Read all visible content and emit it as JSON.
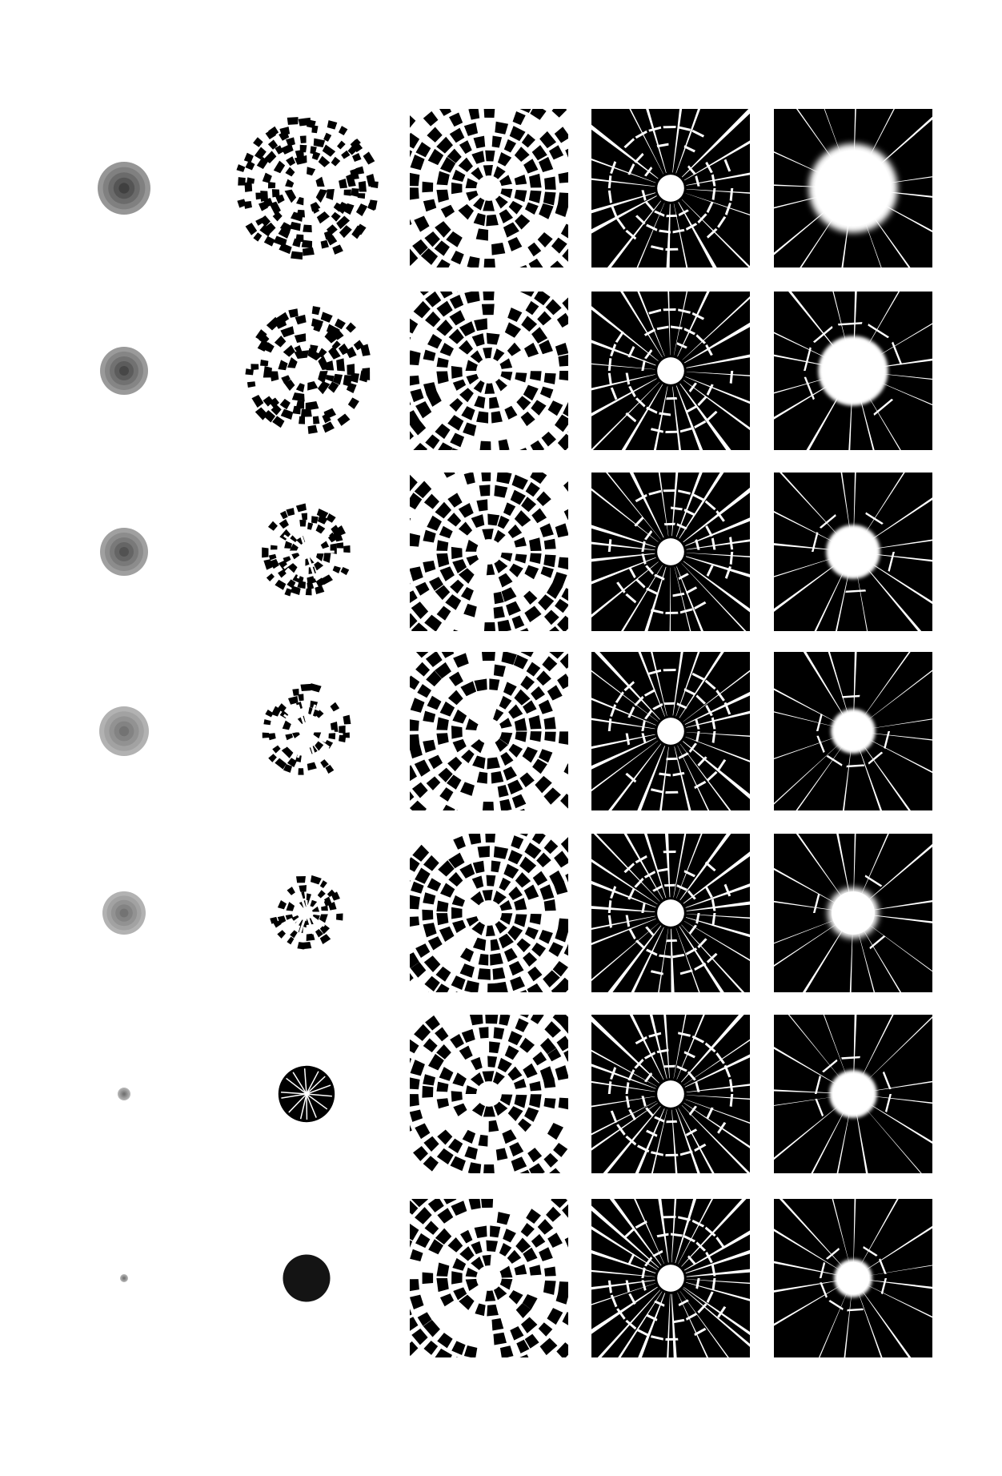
{
  "sheet": {
    "background": "#ffffff",
    "ink": "#000000",
    "columns": [
      {
        "name": "graded-disc"
      },
      {
        "name": "shard-cluster"
      },
      {
        "name": "shattered-ring"
      },
      {
        "name": "broken-glass-tile"
      },
      {
        "name": "bullet-hole-tile"
      }
    ],
    "rows": [
      {
        "disc_shade": 0.75,
        "shard_density": 0.9,
        "ring_breakup": 0.45,
        "glass_segments": 20,
        "hole_size": 0.28,
        "hole_blur": 0.9
      },
      {
        "disc_shade": 0.72,
        "shard_density": 0.85,
        "ring_breakup": 0.5,
        "glass_segments": 22,
        "hole_size": 0.22,
        "hole_blur": 0.6
      },
      {
        "disc_shade": 0.68,
        "shard_density": 0.6,
        "ring_breakup": 0.6,
        "glass_segments": 24,
        "hole_size": 0.17,
        "hole_blur": 0.5
      },
      {
        "disc_shade": 0.55,
        "shard_density": 0.55,
        "ring_breakup": 0.65,
        "glass_segments": 24,
        "hole_size": 0.14,
        "hole_blur": 0.4
      },
      {
        "disc_shade": 0.55,
        "shard_density": 0.35,
        "ring_breakup": 0.55,
        "glass_segments": 26,
        "hole_size": 0.16,
        "hole_blur": 0.7
      },
      {
        "disc_shade": 0.55,
        "shard_density": 0.15,
        "ring_breakup": 0.55,
        "glass_segments": 26,
        "hole_size": 0.15,
        "hole_blur": 0.4
      },
      {
        "disc_shade": 0.55,
        "shard_density": 0.0,
        "ring_breakup": 0.55,
        "glass_segments": 28,
        "hole_size": 0.12,
        "hole_blur": 0.3
      }
    ]
  }
}
